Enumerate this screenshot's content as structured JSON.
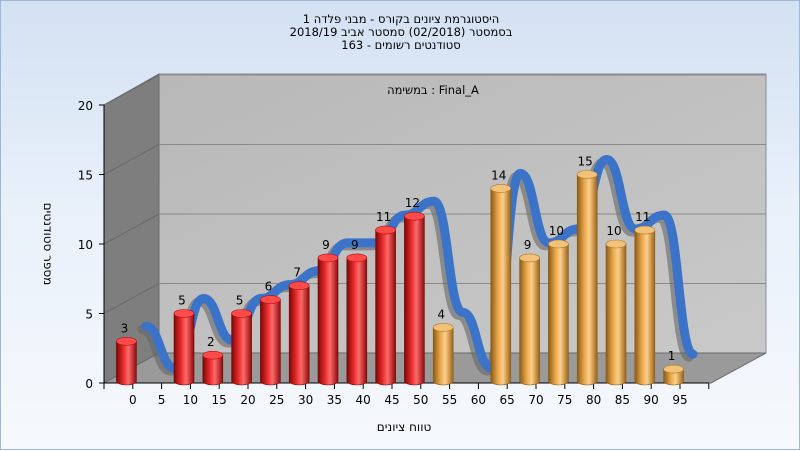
{
  "chart_data": {
    "type": "bar",
    "title_lines": [
      "היסטוגרמת ציונים בקורס - מבני פלדה 1",
      "בסמסטר  (02/2018)  סמסטר אביב 2018/19",
      "סטודנטים רשומים - 163"
    ],
    "subtitle": "במשימה : Final_A",
    "xlabel": "טווח ציונים",
    "ylabel": "מספר סטודנטים",
    "ylim": [
      0,
      20
    ],
    "y_ticks": [
      0,
      5,
      10,
      15,
      20
    ],
    "x_tick_labels": [
      "0",
      "5",
      "10",
      "15",
      "20",
      "25",
      "30",
      "35",
      "40",
      "45",
      "50",
      "55",
      "60",
      "65",
      "70",
      "75",
      "80",
      "85",
      "90",
      "95"
    ],
    "categories": [
      "0",
      "5",
      "10",
      "15",
      "20",
      "25",
      "30",
      "35",
      "40",
      "45",
      "50",
      "55",
      "60",
      "65",
      "70",
      "75",
      "80",
      "85",
      "90",
      "95"
    ],
    "values": [
      3,
      0,
      5,
      2,
      5,
      6,
      7,
      9,
      9,
      11,
      12,
      4,
      0,
      14,
      9,
      10,
      15,
      10,
      11,
      1
    ],
    "bar_colors": [
      "#d91e1e",
      "#d91e1e",
      "#d91e1e",
      "#d91e1e",
      "#d91e1e",
      "#d91e1e",
      "#d91e1e",
      "#d91e1e",
      "#d91e1e",
      "#d91e1e",
      "#d91e1e",
      "#e8a64a",
      "#e8a64a",
      "#e8a64a",
      "#e8a64a",
      "#e8a64a",
      "#e8a64a",
      "#e8a64a",
      "#e8a64a",
      "#e8a64a"
    ],
    "series_colors": {
      "fail": "#d91e1e",
      "pass": "#e8a64a",
      "trend": "#3a73c8"
    },
    "grid": true,
    "style": "3d"
  }
}
